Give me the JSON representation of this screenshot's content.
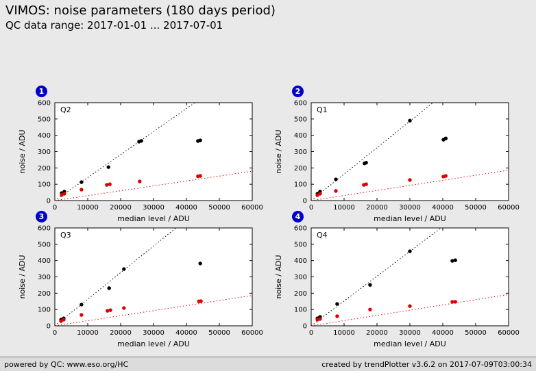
{
  "header": {
    "title": "VIMOS: noise parameters (180 days period)",
    "subtitle": "QC data range: 2017-01-01 ... 2017-07-01"
  },
  "footer": {
    "left": "powered by QC: www.eso.org/HC",
    "right": "created by trendPlotter v3.6.2 on 2017-07-09T03:00:34"
  },
  "colors": {
    "background": "#e9e9e9",
    "plot_bg": "#ffffff",
    "frame": "#000000",
    "badge": "#0000cc",
    "badge_text": "#ffffff",
    "series_black": "#000000",
    "series_red": "#dd0000"
  },
  "chart_data": [
    {
      "type": "scatter",
      "badge": "1",
      "label": "Q2",
      "xlabel": "median level / ADU",
      "ylabel": "noise / ADU",
      "xlim": [
        0,
        60000
      ],
      "ylim": [
        0,
        600
      ],
      "xticks": [
        0,
        10000,
        20000,
        30000,
        40000,
        50000,
        60000
      ],
      "yticks": [
        0,
        100,
        200,
        300,
        400,
        500,
        600
      ],
      "series": [
        {
          "name": "black",
          "color": "#000000",
          "fit_slope": 0.0141,
          "points": [
            [
              2100,
              46
            ],
            [
              2900,
              55
            ],
            [
              8100,
              113
            ],
            [
              16300,
              205
            ],
            [
              25600,
              361
            ],
            [
              26300,
              366
            ],
            [
              43500,
              365
            ],
            [
              44200,
              369
            ]
          ]
        },
        {
          "name": "red",
          "color": "#dd0000",
          "fit_slope": 0.003,
          "points": [
            [
              2100,
              34
            ],
            [
              2900,
              42
            ],
            [
              8100,
              67
            ],
            [
              15800,
              96
            ],
            [
              16700,
              100
            ],
            [
              25800,
              117
            ],
            [
              43500,
              149
            ],
            [
              44200,
              151
            ]
          ]
        }
      ]
    },
    {
      "type": "scatter",
      "badge": "2",
      "label": "Q1",
      "xlabel": "median level / ADU",
      "ylabel": "noise / ADU",
      "xlim": [
        0,
        60000
      ],
      "ylim": [
        0,
        600
      ],
      "xticks": [
        0,
        10000,
        20000,
        30000,
        40000,
        50000,
        60000
      ],
      "yticks": [
        0,
        100,
        200,
        300,
        400,
        500,
        600
      ],
      "series": [
        {
          "name": "black",
          "color": "#000000",
          "fit_slope": 0.0162,
          "points": [
            [
              1900,
              42
            ],
            [
              2700,
              55
            ],
            [
              7500,
              130
            ],
            [
              16200,
              228
            ],
            [
              16700,
              232
            ],
            [
              30000,
              490
            ],
            [
              40200,
              373
            ],
            [
              40900,
              381
            ]
          ]
        },
        {
          "name": "red",
          "color": "#dd0000",
          "fit_slope": 0.0031,
          "points": [
            [
              1900,
              33
            ],
            [
              2700,
              42
            ],
            [
              7500,
              59
            ],
            [
              16000,
              96
            ],
            [
              16700,
              100
            ],
            [
              30000,
              126
            ],
            [
              40200,
              147
            ],
            [
              40900,
              151
            ]
          ]
        }
      ]
    },
    {
      "type": "scatter",
      "badge": "3",
      "label": "Q3",
      "xlabel": "median level / ADU",
      "ylabel": "noise / ADU",
      "xlim": [
        0,
        60000
      ],
      "ylim": [
        0,
        600
      ],
      "xticks": [
        0,
        10000,
        20000,
        30000,
        40000,
        50000,
        60000
      ],
      "yticks": [
        0,
        100,
        200,
        300,
        400,
        500,
        600
      ],
      "series": [
        {
          "name": "black",
          "color": "#000000",
          "fit_slope": 0.0163,
          "points": [
            [
              1900,
              38
            ],
            [
              2700,
              46
            ],
            [
              8100,
              130
            ],
            [
              16500,
              231
            ],
            [
              21000,
              348
            ],
            [
              44200,
              382
            ]
          ]
        },
        {
          "name": "red",
          "color": "#dd0000",
          "fit_slope": 0.0031,
          "points": [
            [
              1900,
              29
            ],
            [
              2700,
              38
            ],
            [
              8100,
              67
            ],
            [
              16000,
              92
            ],
            [
              16900,
              96
            ],
            [
              21000,
              109
            ],
            [
              43800,
              150
            ],
            [
              44400,
              151
            ]
          ]
        }
      ]
    },
    {
      "type": "scatter",
      "badge": "4",
      "label": "Q4",
      "xlabel": "median level / ADU",
      "ylabel": "noise / ADU",
      "xlim": [
        0,
        60000
      ],
      "ylim": [
        0,
        600
      ],
      "xticks": [
        0,
        10000,
        20000,
        30000,
        40000,
        50000,
        60000
      ],
      "yticks": [
        0,
        100,
        200,
        300,
        400,
        500,
        600
      ],
      "series": [
        {
          "name": "black",
          "color": "#000000",
          "fit_slope": 0.0152,
          "points": [
            [
              1900,
              46
            ],
            [
              2700,
              55
            ],
            [
              7900,
              134
            ],
            [
              17900,
              251
            ],
            [
              30000,
              457
            ],
            [
              42900,
              398
            ],
            [
              43800,
              402
            ]
          ]
        },
        {
          "name": "red",
          "color": "#dd0000",
          "fit_slope": 0.0032,
          "points": [
            [
              1900,
              38
            ],
            [
              2700,
              42
            ],
            [
              7900,
              59
            ],
            [
              17900,
              100
            ],
            [
              30000,
              121
            ],
            [
              42900,
              147
            ],
            [
              43800,
              147
            ]
          ]
        }
      ]
    }
  ]
}
